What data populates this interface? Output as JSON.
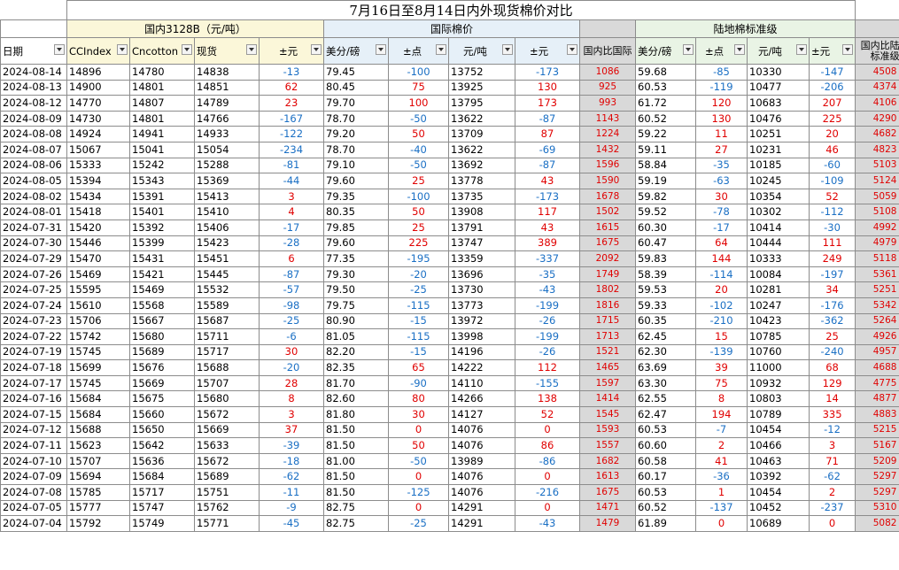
{
  "title": "7月16日至8月14日内外现货棉价对比",
  "groups": {
    "domestic": "国内3128B（元/吨）",
    "intl": "国际棉价",
    "spread_intl": "",
    "std": "陆地棉标准级",
    "spread_std": ""
  },
  "headers": {
    "date": "日期",
    "cc_index": "CCIndex",
    "cncotton": "Cncotton",
    "spot": "现货",
    "spot_chg": "±元",
    "intl_usc": "美分/磅",
    "intl_pts": "±点",
    "intl_yuan": "元/吨",
    "intl_chg": "±元",
    "spread_intl": "国内比国际",
    "std_usc": "美分/磅",
    "std_pts": "±点",
    "std_yuan": "元/吨",
    "std_chg": "±元",
    "spread_std": "国内比陆地标准级"
  },
  "rows": [
    {
      "date": "2024-08-14",
      "cc": "14896",
      "cn": "14780",
      "spot": "14838",
      "spot_chg": "-13",
      "iu": "79.45",
      "ip": "-100",
      "iy": "13752",
      "ic": "-173",
      "sp1": "1086",
      "su": "59.68",
      "spts": "-85",
      "sy": "10330",
      "sc": "-147",
      "sp2": "4508"
    },
    {
      "date": "2024-08-13",
      "cc": "14900",
      "cn": "14801",
      "spot": "14851",
      "spot_chg": "62",
      "iu": "80.45",
      "ip": "75",
      "iy": "13925",
      "ic": "130",
      "sp1": "925",
      "su": "60.53",
      "spts": "-119",
      "sy": "10477",
      "sc": "-206",
      "sp2": "4374"
    },
    {
      "date": "2024-08-12",
      "cc": "14770",
      "cn": "14807",
      "spot": "14789",
      "spot_chg": "23",
      "iu": "79.70",
      "ip": "100",
      "iy": "13795",
      "ic": "173",
      "sp1": "993",
      "su": "61.72",
      "spts": "120",
      "sy": "10683",
      "sc": "207",
      "sp2": "4106"
    },
    {
      "date": "2024-08-09",
      "cc": "14730",
      "cn": "14801",
      "spot": "14766",
      "spot_chg": "-167",
      "iu": "78.70",
      "ip": "-50",
      "iy": "13622",
      "ic": "-87",
      "sp1": "1143",
      "su": "60.52",
      "spts": "130",
      "sy": "10476",
      "sc": "225",
      "sp2": "4290"
    },
    {
      "date": "2024-08-08",
      "cc": "14924",
      "cn": "14941",
      "spot": "14933",
      "spot_chg": "-122",
      "iu": "79.20",
      "ip": "50",
      "iy": "13709",
      "ic": "87",
      "sp1": "1224",
      "su": "59.22",
      "spts": "11",
      "sy": "10251",
      "sc": "20",
      "sp2": "4682"
    },
    {
      "date": "2024-08-07",
      "cc": "15067",
      "cn": "15041",
      "spot": "15054",
      "spot_chg": "-234",
      "iu": "78.70",
      "ip": "-40",
      "iy": "13622",
      "ic": "-69",
      "sp1": "1432",
      "su": "59.11",
      "spts": "27",
      "sy": "10231",
      "sc": "46",
      "sp2": "4823"
    },
    {
      "date": "2024-08-06",
      "cc": "15333",
      "cn": "15242",
      "spot": "15288",
      "spot_chg": "-81",
      "iu": "79.10",
      "ip": "-50",
      "iy": "13692",
      "ic": "-87",
      "sp1": "1596",
      "su": "58.84",
      "spts": "-35",
      "sy": "10185",
      "sc": "-60",
      "sp2": "5103"
    },
    {
      "date": "2024-08-05",
      "cc": "15394",
      "cn": "15343",
      "spot": "15369",
      "spot_chg": "-44",
      "iu": "79.60",
      "ip": "25",
      "iy": "13778",
      "ic": "43",
      "sp1": "1590",
      "su": "59.19",
      "spts": "-63",
      "sy": "10245",
      "sc": "-109",
      "sp2": "5124"
    },
    {
      "date": "2024-08-02",
      "cc": "15434",
      "cn": "15391",
      "spot": "15413",
      "spot_chg": "3",
      "iu": "79.35",
      "ip": "-100",
      "iy": "13735",
      "ic": "-173",
      "sp1": "1678",
      "su": "59.82",
      "spts": "30",
      "sy": "10354",
      "sc": "52",
      "sp2": "5059"
    },
    {
      "date": "2024-08-01",
      "cc": "15418",
      "cn": "15401",
      "spot": "15410",
      "spot_chg": "4",
      "iu": "80.35",
      "ip": "50",
      "iy": "13908",
      "ic": "117",
      "sp1": "1502",
      "su": "59.52",
      "spts": "-78",
      "sy": "10302",
      "sc": "-112",
      "sp2": "5108"
    },
    {
      "date": "2024-07-31",
      "cc": "15420",
      "cn": "15392",
      "spot": "15406",
      "spot_chg": "-17",
      "iu": "79.85",
      "ip": "25",
      "iy": "13791",
      "ic": "43",
      "sp1": "1615",
      "su": "60.30",
      "spts": "-17",
      "sy": "10414",
      "sc": "-30",
      "sp2": "4992"
    },
    {
      "date": "2024-07-30",
      "cc": "15446",
      "cn": "15399",
      "spot": "15423",
      "spot_chg": "-28",
      "iu": "79.60",
      "ip": "225",
      "iy": "13747",
      "ic": "389",
      "sp1": "1675",
      "su": "60.47",
      "spts": "64",
      "sy": "10444",
      "sc": "111",
      "sp2": "4979"
    },
    {
      "date": "2024-07-29",
      "cc": "15470",
      "cn": "15431",
      "spot": "15451",
      "spot_chg": "6",
      "iu": "77.35",
      "ip": "-195",
      "iy": "13359",
      "ic": "-337",
      "sp1": "2092",
      "su": "59.83",
      "spts": "144",
      "sy": "10333",
      "sc": "249",
      "sp2": "5118"
    },
    {
      "date": "2024-07-26",
      "cc": "15469",
      "cn": "15421",
      "spot": "15445",
      "spot_chg": "-87",
      "iu": "79.30",
      "ip": "-20",
      "iy": "13696",
      "ic": "-35",
      "sp1": "1749",
      "su": "58.39",
      "spts": "-114",
      "sy": "10084",
      "sc": "-197",
      "sp2": "5361"
    },
    {
      "date": "2024-07-25",
      "cc": "15595",
      "cn": "15469",
      "spot": "15532",
      "spot_chg": "-57",
      "iu": "79.50",
      "ip": "-25",
      "iy": "13730",
      "ic": "-43",
      "sp1": "1802",
      "su": "59.53",
      "spts": "20",
      "sy": "10281",
      "sc": "34",
      "sp2": "5251"
    },
    {
      "date": "2024-07-24",
      "cc": "15610",
      "cn": "15568",
      "spot": "15589",
      "spot_chg": "-98",
      "iu": "79.75",
      "ip": "-115",
      "iy": "13773",
      "ic": "-199",
      "sp1": "1816",
      "su": "59.33",
      "spts": "-102",
      "sy": "10247",
      "sc": "-176",
      "sp2": "5342"
    },
    {
      "date": "2024-07-23",
      "cc": "15706",
      "cn": "15667",
      "spot": "15687",
      "spot_chg": "-25",
      "iu": "80.90",
      "ip": "-15",
      "iy": "13972",
      "ic": "-26",
      "sp1": "1715",
      "su": "60.35",
      "spts": "-210",
      "sy": "10423",
      "sc": "-362",
      "sp2": "5264"
    },
    {
      "date": "2024-07-22",
      "cc": "15742",
      "cn": "15680",
      "spot": "15711",
      "spot_chg": "-6",
      "iu": "81.05",
      "ip": "-115",
      "iy": "13998",
      "ic": "-199",
      "sp1": "1713",
      "su": "62.45",
      "spts": "15",
      "sy": "10785",
      "sc": "25",
      "sp2": "4926"
    },
    {
      "date": "2024-07-19",
      "cc": "15745",
      "cn": "15689",
      "spot": "15717",
      "spot_chg": "30",
      "iu": "82.20",
      "ip": "-15",
      "iy": "14196",
      "ic": "-26",
      "sp1": "1521",
      "su": "62.30",
      "spts": "-139",
      "sy": "10760",
      "sc": "-240",
      "sp2": "4957"
    },
    {
      "date": "2024-07-18",
      "cc": "15699",
      "cn": "15676",
      "spot": "15688",
      "spot_chg": "-20",
      "iu": "82.35",
      "ip": "65",
      "iy": "14222",
      "ic": "112",
      "sp1": "1465",
      "su": "63.69",
      "spts": "39",
      "sy": "11000",
      "sc": "68",
      "sp2": "4688"
    },
    {
      "date": "2024-07-17",
      "cc": "15745",
      "cn": "15669",
      "spot": "15707",
      "spot_chg": "28",
      "iu": "81.70",
      "ip": "-90",
      "iy": "14110",
      "ic": "-155",
      "sp1": "1597",
      "su": "63.30",
      "spts": "75",
      "sy": "10932",
      "sc": "129",
      "sp2": "4775"
    },
    {
      "date": "2024-07-16",
      "cc": "15684",
      "cn": "15675",
      "spot": "15680",
      "spot_chg": "8",
      "iu": "82.60",
      "ip": "80",
      "iy": "14266",
      "ic": "138",
      "sp1": "1414",
      "su": "62.55",
      "spts": "8",
      "sy": "10803",
      "sc": "14",
      "sp2": "4877"
    },
    {
      "date": "2024-07-15",
      "cc": "15684",
      "cn": "15660",
      "spot": "15672",
      "spot_chg": "3",
      "iu": "81.80",
      "ip": "30",
      "iy": "14127",
      "ic": "52",
      "sp1": "1545",
      "su": "62.47",
      "spts": "194",
      "sy": "10789",
      "sc": "335",
      "sp2": "4883"
    },
    {
      "date": "2024-07-12",
      "cc": "15688",
      "cn": "15650",
      "spot": "15669",
      "spot_chg": "37",
      "iu": "81.50",
      "ip": "0",
      "iy": "14076",
      "ic": "0",
      "sp1": "1593",
      "su": "60.53",
      "spts": "-7",
      "sy": "10454",
      "sc": "-12",
      "sp2": "5215"
    },
    {
      "date": "2024-07-11",
      "cc": "15623",
      "cn": "15642",
      "spot": "15633",
      "spot_chg": "-39",
      "iu": "81.50",
      "ip": "50",
      "iy": "14076",
      "ic": "86",
      "sp1": "1557",
      "su": "60.60",
      "spts": "2",
      "sy": "10466",
      "sc": "3",
      "sp2": "5167"
    },
    {
      "date": "2024-07-10",
      "cc": "15707",
      "cn": "15636",
      "spot": "15672",
      "spot_chg": "-18",
      "iu": "81.00",
      "ip": "-50",
      "iy": "13989",
      "ic": "-86",
      "sp1": "1682",
      "su": "60.58",
      "spts": "41",
      "sy": "10463",
      "sc": "71",
      "sp2": "5209"
    },
    {
      "date": "2024-07-09",
      "cc": "15694",
      "cn": "15684",
      "spot": "15689",
      "spot_chg": "-62",
      "iu": "81.50",
      "ip": "0",
      "iy": "14076",
      "ic": "0",
      "sp1": "1613",
      "su": "60.17",
      "spts": "-36",
      "sy": "10392",
      "sc": "-62",
      "sp2": "5297"
    },
    {
      "date": "2024-07-08",
      "cc": "15785",
      "cn": "15717",
      "spot": "15751",
      "spot_chg": "-11",
      "iu": "81.50",
      "ip": "-125",
      "iy": "14076",
      "ic": "-216",
      "sp1": "1675",
      "su": "60.53",
      "spts": "1",
      "sy": "10454",
      "sc": "2",
      "sp2": "5297"
    },
    {
      "date": "2024-07-05",
      "cc": "15777",
      "cn": "15747",
      "spot": "15762",
      "spot_chg": "-9",
      "iu": "82.75",
      "ip": "0",
      "iy": "14291",
      "ic": "0",
      "sp1": "1471",
      "su": "60.52",
      "spts": "-137",
      "sy": "10452",
      "sc": "-237",
      "sp2": "5310"
    },
    {
      "date": "2024-07-04",
      "cc": "15792",
      "cn": "15749",
      "spot": "15771",
      "spot_chg": "-45",
      "iu": "82.75",
      "ip": "-25",
      "iy": "14291",
      "ic": "-43",
      "sp1": "1479",
      "su": "61.89",
      "spts": "0",
      "sy": "10689",
      "sc": "0",
      "sp2": "5082"
    }
  ],
  "colors": {
    "positive": "#e00000",
    "negative": "#1a6fc4",
    "yellow_header": "#fbf7d9",
    "blue_header": "#e6f0f8",
    "green_header": "#e9f4e5",
    "spread_bg": "#d9d9d9"
  },
  "icons": {
    "filter": "dropdown-filter-icon"
  }
}
